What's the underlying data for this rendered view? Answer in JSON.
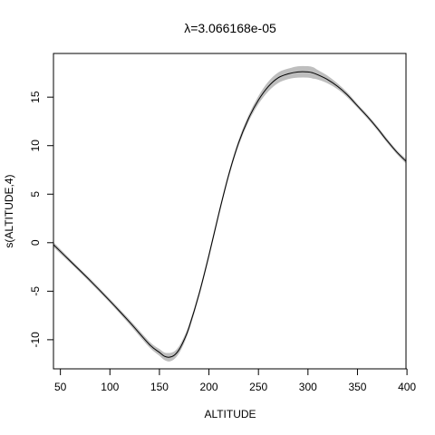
{
  "chart_data": {
    "type": "line",
    "title": "λ=3.066168e-05",
    "xlabel": "ALTITUDE",
    "ylabel": "s(ALTITUDE,4)",
    "xlim": [
      43,
      399
    ],
    "ylim": [
      -13.0,
      19.5
    ],
    "x_ticks": [
      50,
      100,
      150,
      200,
      250,
      300,
      350,
      400
    ],
    "y_ticks": [
      -10,
      -5,
      0,
      5,
      10,
      15
    ],
    "grid": false,
    "legend": "none",
    "colors": {
      "line": "#000000",
      "band": "#bebebe",
      "frame": "#000000"
    },
    "series": [
      {
        "x": [
          43,
          60,
          80,
          100,
          120,
          140,
          150,
          155,
          160,
          165,
          170,
          175,
          180,
          190,
          200,
          210,
          220,
          230,
          240,
          250,
          260,
          270,
          280,
          290,
          300,
          305,
          310,
          320,
          330,
          340,
          350,
          360,
          370,
          380,
          390,
          399
        ],
        "y": [
          -0.2,
          -1.9,
          -3.9,
          -6.0,
          -8.2,
          -10.5,
          -11.3,
          -11.7,
          -11.8,
          -11.6,
          -11.0,
          -10.0,
          -8.7,
          -5.3,
          -1.3,
          3.0,
          7.0,
          10.3,
          12.8,
          14.7,
          16.1,
          17.0,
          17.4,
          17.6,
          17.6,
          17.5,
          17.3,
          16.8,
          16.1,
          15.2,
          14.1,
          13.0,
          11.8,
          10.5,
          9.3,
          8.4
        ],
        "lower": [
          -0.4,
          -2.05,
          -4.05,
          -6.15,
          -8.4,
          -10.75,
          -11.6,
          -12.05,
          -12.2,
          -11.95,
          -11.3,
          -10.25,
          -8.9,
          -5.45,
          -1.45,
          2.85,
          6.85,
          10.1,
          12.55,
          14.35,
          15.65,
          16.5,
          16.9,
          17.05,
          17.05,
          16.95,
          16.85,
          16.45,
          15.85,
          15.0,
          13.95,
          12.85,
          11.65,
          10.35,
          9.15,
          8.2
        ],
        "upper": [
          0.0,
          -1.75,
          -3.75,
          -5.85,
          -8.0,
          -10.25,
          -11.0,
          -11.35,
          -11.4,
          -11.25,
          -10.7,
          -9.75,
          -8.5,
          -5.15,
          -1.15,
          3.15,
          7.15,
          10.5,
          13.05,
          15.05,
          16.55,
          17.5,
          17.9,
          18.15,
          18.15,
          18.05,
          17.75,
          17.15,
          16.35,
          15.4,
          14.25,
          13.15,
          11.95,
          10.65,
          9.45,
          8.6
        ]
      }
    ]
  }
}
